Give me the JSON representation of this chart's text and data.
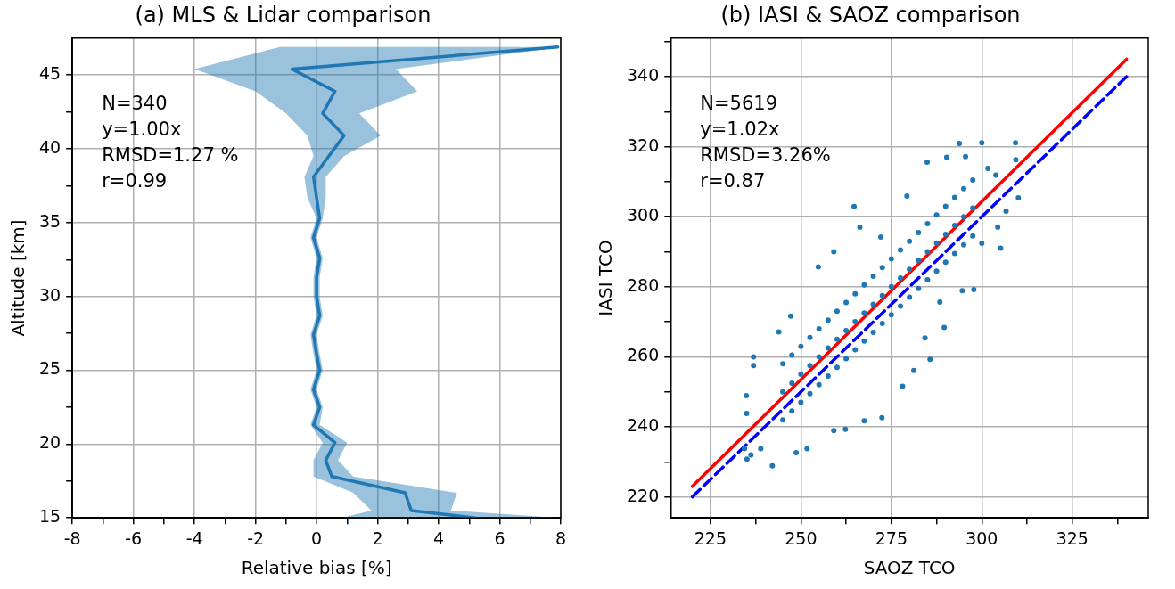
{
  "chart_data": [
    {
      "type": "line",
      "orientation": "horizontal",
      "title": "(a) MLS & Lidar comparison",
      "xlabel": "Relative bias [%]",
      "ylabel": "Altitude [km]",
      "annotations": [
        "N=340",
        "y=1.00x",
        "RMSD=1.27 %",
        "r=0.99"
      ],
      "series": [
        {
          "color": "#1f77b4",
          "x": [
            15.0,
            15.5,
            16.7,
            17.8,
            18.9,
            20.1,
            21.3,
            22.5,
            23.7,
            25.0,
            26.1,
            27.4,
            28.7,
            30.0,
            31.3,
            32.6,
            34.0,
            35.3,
            36.7,
            38.1,
            39.5,
            40.9,
            42.4,
            43.9,
            45.4,
            46.9
          ],
          "values": [
            5.2,
            3.1,
            2.9,
            0.5,
            0.3,
            0.6,
            -0.1,
            0.1,
            -0.1,
            0.1,
            0.0,
            -0.1,
            0.1,
            0.0,
            0.0,
            0.1,
            -0.1,
            0.1,
            0.0,
            -0.1,
            0.4,
            0.9,
            0.2,
            0.6,
            -0.8,
            7.9
          ],
          "lower": [
            0.8,
            1.8,
            1.2,
            -0.1,
            -0.1,
            0.2,
            -0.2,
            0.0,
            -0.2,
            0.0,
            -0.1,
            -0.2,
            0.0,
            -0.1,
            -0.1,
            0.0,
            -0.2,
            0.0,
            -0.3,
            -0.4,
            -0.1,
            -0.3,
            -1.0,
            -2.0,
            -4.0,
            -1.2
          ],
          "upper": [
            8.0,
            4.4,
            4.6,
            1.2,
            0.7,
            1.0,
            0.1,
            0.2,
            0.0,
            0.2,
            0.1,
            0.0,
            0.2,
            0.1,
            0.1,
            0.2,
            0.0,
            0.2,
            0.3,
            0.3,
            0.9,
            2.1,
            1.4,
            3.3,
            2.6,
            8.0
          ]
        }
      ],
      "xlim": [
        -8,
        8
      ],
      "xticks": [
        -8,
        {
          "value": -7,
          "label": null
        },
        -6,
        {
          "value": -5,
          "label": null
        },
        -4,
        {
          "value": -3,
          "label": null
        },
        -2,
        {
          "value": -1,
          "label": null
        },
        0,
        {
          "value": 1,
          "label": null
        },
        2,
        {
          "value": 3,
          "label": null
        },
        4,
        {
          "value": 5,
          "label": null
        },
        6,
        {
          "value": 7,
          "label": null
        },
        8
      ],
      "ylim": [
        15,
        47.5
      ],
      "yticks": [
        15,
        {
          "value": 17.5,
          "label": null
        },
        20,
        {
          "value": 22.5,
          "label": null
        },
        25,
        {
          "value": 27.5,
          "label": null
        },
        30,
        {
          "value": 32.5,
          "label": null
        },
        35,
        {
          "value": 37.5,
          "label": null
        },
        40,
        {
          "value": 42.5,
          "label": null
        },
        45
      ],
      "grid": true
    },
    {
      "type": "scatter",
      "title": "(b) IASI & SAOZ comparison",
      "xlabel": "SAOZ TCO",
      "ylabel": "IASI TCO",
      "annotations": [
        "N=5619",
        "y=1.02x",
        "RMSD=3.26%",
        "r=0.87"
      ],
      "series": [
        {
          "type": "scatter",
          "marker": "circle",
          "color": "#1f77b4",
          "x": [
            293.8,
            300.0,
            309.3,
            309.4,
            310.1,
            306.7,
            305.2,
            297.8,
            289.6,
            278.1,
            272.4,
            267.5,
            262.3,
            259.1,
            251.7,
            248.7,
            242.1,
            235.1,
            234.9,
            236.9,
            236.9,
            235.0,
            264.7,
            284.9,
            290.3,
            295.5,
            247.2,
            243.9,
            259.1,
            254.8,
            266.3,
            272.1,
            279.3,
            294.6,
            288.4,
            284.3,
            285.7,
            281.2,
            238.9,
            234.4,
            236.2,
            301.7,
            303.9,
            304.4,
            300.0,
            245,
            245,
            245,
            247.5,
            247.5,
            247.5,
            250,
            250,
            250,
            252.5,
            252.5,
            252.5,
            255,
            255,
            255,
            257.5,
            257.5,
            257.5,
            260,
            260,
            260,
            262.5,
            262.5,
            262.5,
            265,
            265,
            265,
            267.5,
            267.5,
            267.5,
            270,
            270,
            270,
            272.5,
            272.5,
            272.5,
            275,
            275,
            275,
            277.5,
            277.5,
            277.5,
            280,
            280,
            280,
            282.5,
            282.5,
            282.5,
            285,
            285,
            285,
            287.5,
            287.5,
            287.5,
            290,
            290,
            290,
            292.5,
            292.5,
            292.5,
            295,
            295,
            295,
            297.5,
            297.5,
            297.5
          ],
          "values": [
            320.9,
            321.1,
            321.1,
            316.3,
            305.4,
            301.6,
            291.0,
            279.2,
            268.4,
            251.6,
            242.6,
            241.7,
            239.3,
            238.9,
            233.8,
            232.6,
            228.9,
            230.8,
            248.9,
            260.0,
            257.5,
            243.8,
            302.9,
            315.6,
            317.0,
            317.2,
            271.6,
            267.1,
            290.0,
            285.7,
            297.0,
            294.2,
            305.9,
            278.9,
            275.6,
            265.4,
            259.3,
            256.1,
            233.8,
            233.8,
            232.0,
            313.8,
            311.9,
            297.0,
            292.4,
            242,
            250,
            258,
            244.5,
            252.5,
            260.5,
            247,
            255,
            263,
            249.5,
            257.5,
            265.5,
            252,
            260,
            268,
            254.5,
            262.5,
            270.5,
            257,
            265,
            273,
            259.5,
            267.5,
            275.5,
            262,
            270,
            278,
            264.5,
            272.5,
            280.5,
            267,
            275,
            283,
            269.5,
            277.5,
            285.5,
            272,
            280,
            288,
            274.5,
            282.5,
            290.5,
            277,
            285,
            293,
            279.5,
            287.5,
            295.5,
            282,
            290,
            298,
            284.5,
            292.5,
            300.5,
            287,
            295,
            303,
            289.5,
            297.5,
            305.5,
            292,
            300,
            308,
            294.5,
            302.5,
            310.5
          ]
        },
        {
          "type": "line",
          "color": "#ff0000",
          "x": [
            220,
            340
          ],
          "values": [
            223,
            345
          ]
        },
        {
          "type": "line",
          "color": "#0000ff",
          "line_style": "dashed",
          "x": [
            220,
            340
          ],
          "values": [
            220,
            340
          ]
        }
      ],
      "xlim": [
        214,
        346
      ],
      "xticks": [
        225,
        {
          "value": 237.5,
          "label": null
        },
        250,
        {
          "value": 262.5,
          "label": null
        },
        275,
        {
          "value": 287.5,
          "label": null
        },
        300,
        {
          "value": 312.5,
          "label": null
        },
        325,
        {
          "value": 337.5,
          "label": null
        }
      ],
      "ylim": [
        214,
        351
      ],
      "yticks": [
        220,
        {
          "value": 230,
          "label": null
        },
        240,
        {
          "value": 250,
          "label": null
        },
        260,
        {
          "value": 270,
          "label": null
        },
        280,
        {
          "value": 290,
          "label": null
        },
        300,
        {
          "value": 310,
          "label": null
        },
        320,
        {
          "value": 330,
          "label": null
        },
        340,
        {
          "value": 350,
          "label": null
        }
      ],
      "grid": true
    }
  ]
}
